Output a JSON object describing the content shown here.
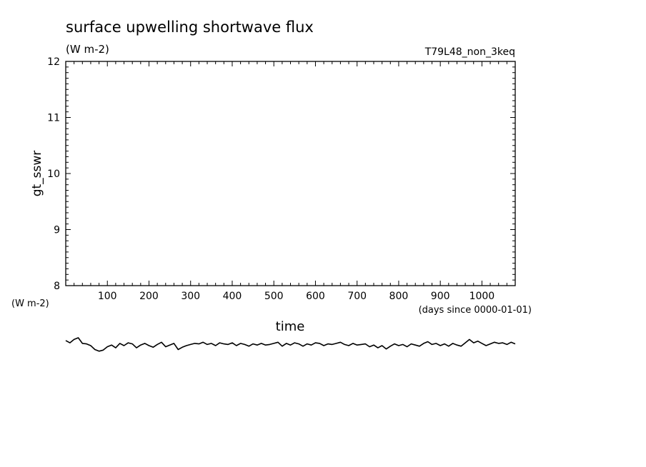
{
  "chart_data": {
    "type": "line",
    "title": "surface upwelling shortwave flux",
    "subtitle": "(W m-2)",
    "run_label": "T79L48_non_3keq",
    "xlabel": "time",
    "x_units": "(days since 0000-01-01)",
    "ylabel": "gt_sswr",
    "y_units": "(W m-2)",
    "xlim": [
      0,
      1080
    ],
    "ylim": [
      8,
      12
    ],
    "x_ticks": [
      100,
      200,
      300,
      400,
      500,
      600,
      700,
      800,
      900,
      1000
    ],
    "y_ticks": [
      8,
      9,
      10,
      11,
      12
    ],
    "grid": false,
    "series": [
      {
        "color": "#000000",
        "x": [
          0,
          10,
          20,
          30,
          40,
          50,
          60,
          70,
          80,
          90,
          100,
          110,
          120,
          130,
          140,
          150,
          160,
          170,
          180,
          190,
          200,
          210,
          220,
          230,
          240,
          250,
          260,
          270,
          280,
          290,
          300,
          310,
          320,
          330,
          340,
          350,
          360,
          370,
          380,
          390,
          400,
          410,
          420,
          430,
          440,
          450,
          460,
          470,
          480,
          490,
          500,
          510,
          520,
          530,
          540,
          550,
          560,
          570,
          580,
          590,
          600,
          610,
          620,
          630,
          640,
          650,
          660,
          670,
          680,
          690,
          700,
          710,
          720,
          730,
          740,
          750,
          760,
          770,
          780,
          790,
          800,
          810,
          820,
          830,
          840,
          850,
          860,
          870,
          880,
          890,
          900,
          910,
          920,
          930,
          940,
          950,
          960,
          970,
          980,
          990,
          1000,
          1010,
          1020,
          1030,
          1040,
          1050,
          1060,
          1070,
          1080
        ],
        "y": [
          7.02,
          6.98,
          7.04,
          7.07,
          6.97,
          6.96,
          6.93,
          6.86,
          6.83,
          6.85,
          6.91,
          6.94,
          6.89,
          6.97,
          6.93,
          6.98,
          6.96,
          6.89,
          6.94,
          6.97,
          6.93,
          6.9,
          6.95,
          6.99,
          6.91,
          6.94,
          6.97,
          6.86,
          6.9,
          6.93,
          6.95,
          6.97,
          6.96,
          6.99,
          6.95,
          6.97,
          6.93,
          6.98,
          6.96,
          6.95,
          6.98,
          6.93,
          6.97,
          6.95,
          6.92,
          6.96,
          6.94,
          6.97,
          6.94,
          6.95,
          6.97,
          6.99,
          6.92,
          6.97,
          6.94,
          6.98,
          6.96,
          6.92,
          6.96,
          6.94,
          6.98,
          6.97,
          6.93,
          6.96,
          6.95,
          6.97,
          6.99,
          6.95,
          6.93,
          6.97,
          6.94,
          6.95,
          6.96,
          6.91,
          6.94,
          6.89,
          6.93,
          6.87,
          6.92,
          6.96,
          6.93,
          6.95,
          6.91,
          6.96,
          6.94,
          6.92,
          6.97,
          7.0,
          6.95,
          6.97,
          6.93,
          6.96,
          6.92,
          6.97,
          6.94,
          6.92,
          6.98,
          7.04,
          6.98,
          7.01,
          6.97,
          6.93,
          6.96,
          6.99,
          6.97,
          6.98,
          6.95,
          6.99,
          6.96
        ]
      }
    ]
  }
}
